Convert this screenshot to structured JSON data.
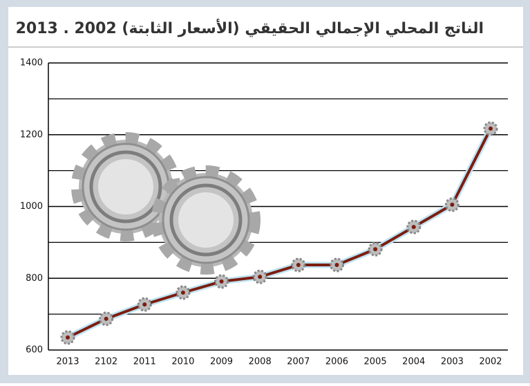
{
  "chart_data": {
    "type": "line",
    "title": "الناتج المحلي الإجمالي الحقيقي (الأسعار الثابتة)  2002 . 2013",
    "categories": [
      "2013",
      "2102",
      "2011",
      "2010",
      "2009",
      "2008",
      "2007",
      "2006",
      "2005",
      "2004",
      "2003",
      "2002"
    ],
    "values": [
      635,
      687,
      727,
      760,
      791,
      804,
      837,
      837,
      881,
      943,
      1005,
      1217
    ],
    "color": "#7b1d10",
    "ylim": [
      600,
      1400
    ],
    "yticks": [
      600,
      800,
      1000,
      1200,
      1400
    ],
    "minor_yticks": [
      700,
      900,
      1100,
      1300
    ],
    "grid": true
  }
}
